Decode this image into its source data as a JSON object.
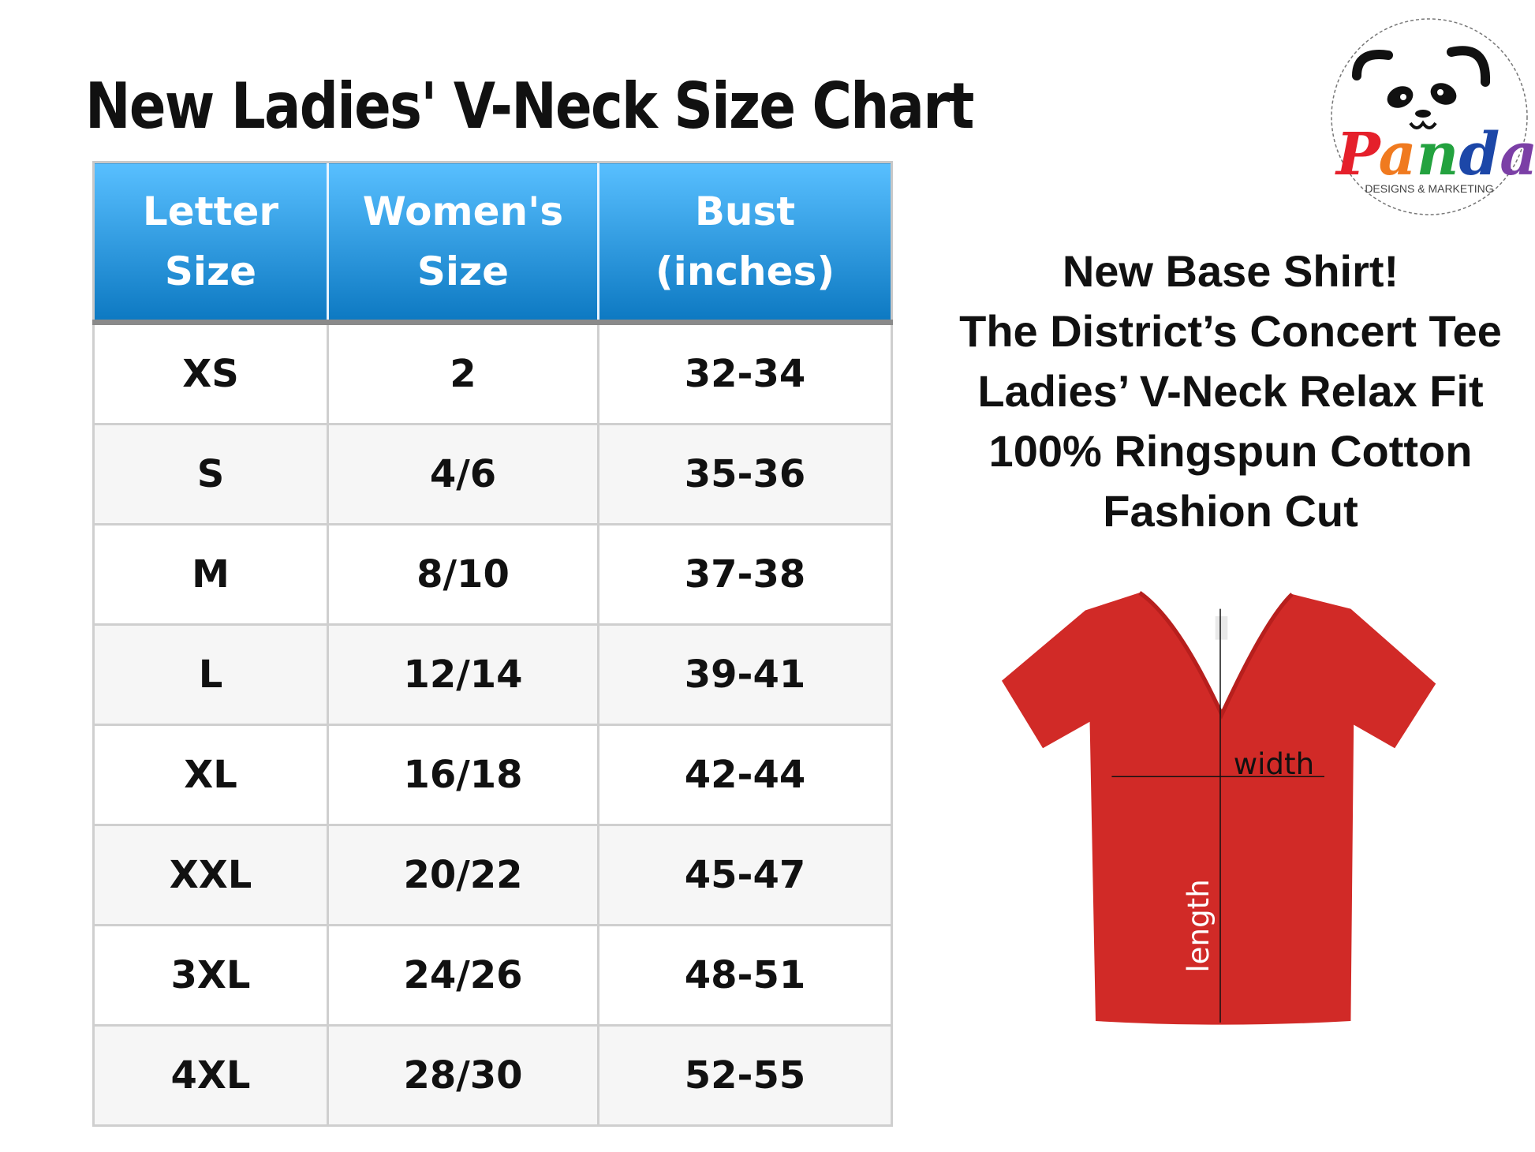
{
  "title": "New Ladies' V-Neck Size Chart",
  "logo": {
    "brand": "Panda",
    "tagline": "DESIGNS & MARKETING",
    "letter_colors": [
      "#e5202b",
      "#f07a1f",
      "#23a23f",
      "#1c47a8",
      "#7b3fa6"
    ]
  },
  "table": {
    "headers": [
      {
        "line1": "Letter",
        "line2": "Size"
      },
      {
        "line1": "Women's",
        "line2": "Size"
      },
      {
        "line1": "Bust",
        "line2": "(inches)"
      }
    ],
    "rows": [
      [
        "XS",
        "2",
        "32-34"
      ],
      [
        "S",
        "4/6",
        "35-36"
      ],
      [
        "M",
        "8/10",
        "37-38"
      ],
      [
        "L",
        "12/14",
        "39-41"
      ],
      [
        "XL",
        "16/18",
        "42-44"
      ],
      [
        "XXL",
        "20/22",
        "45-47"
      ],
      [
        "3XL",
        "24/26",
        "48-51"
      ],
      [
        "4XL",
        "28/30",
        "52-55"
      ]
    ],
    "header_color": "#2a9ee6"
  },
  "description": [
    "New Base Shirt!",
    "The District’s Concert Tee",
    "Ladies’ V-Neck Relax Fit",
    "100% Ringspun Cotton",
    "Fashion Cut"
  ],
  "shirt": {
    "color": "#d12a27",
    "width_label": "width",
    "length_label": "length"
  }
}
